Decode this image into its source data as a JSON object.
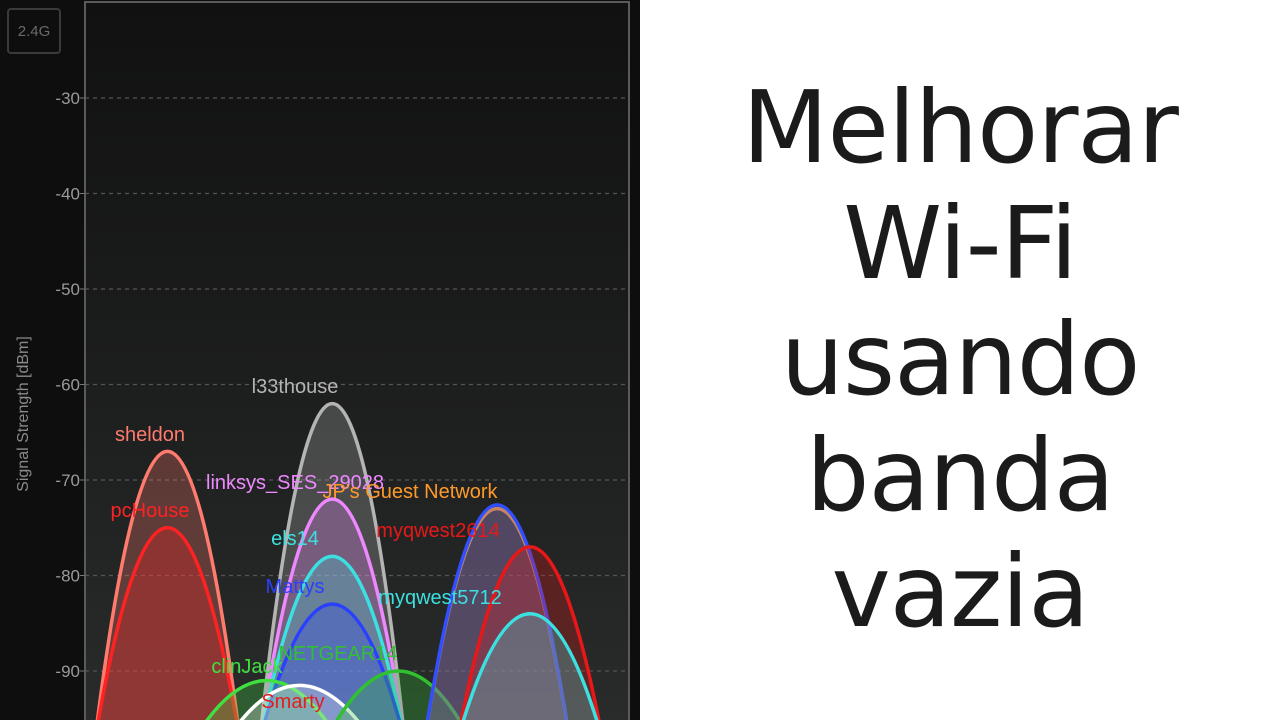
{
  "band_button": {
    "label": "2.4G"
  },
  "caption": {
    "lines": [
      "Melhorar",
      "Wi-Fi",
      "usando",
      "banda",
      "vazia"
    ]
  },
  "chart_data": {
    "type": "area",
    "ylabel": "Signal Strength [dBm]",
    "yticks": [
      -30,
      -40,
      -50,
      -60,
      -70,
      -80,
      -90
    ],
    "ylim": [
      -96,
      -20
    ],
    "xlim": [
      -1.5,
      15
    ],
    "grid": true,
    "series": [
      {
        "name": "sheldon",
        "color": "#ff7b6e",
        "channel": 1,
        "dbm": -67
      },
      {
        "name": "pcHouse",
        "color": "#ff2222",
        "channel": 1,
        "dbm": -75
      },
      {
        "name": "l33thouse",
        "color": "#b4b4b4",
        "channel": 6,
        "dbm": -62
      },
      {
        "name": "linksys_SES_29028",
        "color": "#ee88ff",
        "channel": 6,
        "dbm": -72
      },
      {
        "name": "els14",
        "color": "#3ce0e0",
        "channel": 6,
        "dbm": -78
      },
      {
        "name": "Mattys",
        "color": "#2a40ff",
        "channel": 6,
        "dbm": -83
      },
      {
        "name": "clinJack",
        "color": "#40e040",
        "channel": 4,
        "dbm": -91
      },
      {
        "name": "",
        "color": "#ffffff",
        "channel": 5,
        "dbm": -91.5
      },
      {
        "name": "NETGEAR14",
        "color": "#30c030",
        "channel": 8,
        "dbm": -90
      },
      {
        "name": "JP's Guest Network",
        "color": "#ff9a2a",
        "channel": 11,
        "dbm": -73
      },
      {
        "name": "",
        "color": "#3050ff",
        "channel": 11,
        "dbm": -72.6
      },
      {
        "name": "myqwest2614",
        "color": "#e81818",
        "channel": 12,
        "dbm": -77
      },
      {
        "name": "myqwest5712",
        "color": "#3ce0e0",
        "channel": 12,
        "dbm": -84
      }
    ],
    "labels": [
      {
        "text": "sheldon",
        "color": "#ff7b6e"
      },
      {
        "text": "pcHouse",
        "color": "#ff2222"
      },
      {
        "text": "l33thouse",
        "color": "#b4b4b4"
      },
      {
        "text": "linksys_SES_29028",
        "color": "#ee88ff"
      },
      {
        "text": "JP's Guest Network",
        "color": "#ff9a2a"
      },
      {
        "text": "myqwest2614",
        "color": "#e81818"
      },
      {
        "text": "els14",
        "color": "#3ce0e0"
      },
      {
        "text": "Mattys",
        "color": "#2a40ff"
      },
      {
        "text": "myqwest5712",
        "color": "#3ce0e0"
      },
      {
        "text": "NETGEAR14",
        "color": "#30c030"
      },
      {
        "text": "clinJack",
        "color": "#40e040"
      },
      {
        "text": "Smarty",
        "color": "#e02020"
      }
    ]
  }
}
